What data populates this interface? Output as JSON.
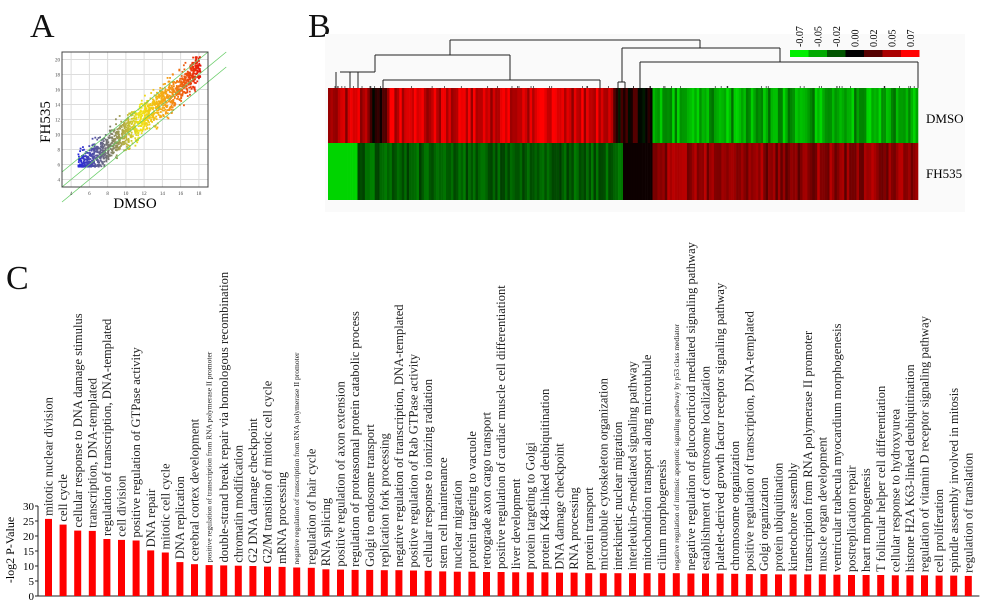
{
  "panels": {
    "a": "A",
    "b": "B",
    "c": "C"
  },
  "scatter": {
    "xlabel": "DMSO",
    "ylabel": "FH535",
    "x_ticks": [
      "4",
      "6",
      "8",
      "10",
      "12",
      "14",
      "16",
      "18"
    ],
    "y_ticks": [
      "4",
      "6",
      "8",
      "10",
      "12",
      "14",
      "16",
      "18",
      "20"
    ],
    "xlim": [
      3,
      19
    ],
    "ylim": [
      3,
      21
    ]
  },
  "heatmap": {
    "rows": [
      "DMSO",
      "FH535"
    ],
    "colorbar_ticks": [
      "-0.07",
      "-0.05",
      "-0.02",
      "0.00",
      "0.02",
      "0.05",
      "0.07"
    ],
    "colorbar_colors": [
      "#00ee00",
      "#00aa00",
      "#005500",
      "#000000",
      "#550000",
      "#aa0000",
      "#ff0000"
    ]
  },
  "chart_data": {
    "type": "bar",
    "title": "",
    "xlabel": "",
    "ylabel": "-log2 P-Value",
    "ylim": [
      0,
      30
    ],
    "y_ticks": [
      "0",
      "5",
      "10",
      "15",
      "20",
      "25",
      "30"
    ],
    "bar_color": "#ff0000",
    "categories": [
      "mitotic nuclear division",
      "cell cycle",
      "cellular response to DNA damage stimulus",
      "transcription, DNA-templated",
      "regulation of transcription, DNA-templated",
      "cell division",
      "positive regulation of GTPase activity",
      "DNA repair",
      "mitotic cell cycle",
      "DNA replication",
      "cerebral cortex development",
      "positive regulation of transcription from RNA polymerase II promoter",
      "double-strand break repair via homologous recombination",
      "chromatin modification",
      "G2 DNA damage checkpoint",
      "G2/M transition of mitotic cell cycle",
      "mRNA processing",
      "negative regulation of transcription from RNA polymerase II promoter",
      "regulation of hair cycle",
      "RNA splicing",
      "positive regulation of axon extension",
      "regulation of proteasomal protein catabolic process",
      "Golgi to endosome transport",
      "replication fork processing",
      "negative regulation of transcription, DNA-templated",
      "positive regulation of Rab GTPase activity",
      "cellular response to ionizing radiation",
      "stem cell maintenance",
      "nuclear migration",
      "protein targeting to vacuole",
      "retrograde axon cargo transport",
      "positive regulation of cardiac muscle cell differentiationt",
      "liver development",
      "protein targeting to Golgi",
      "protein K48-linked deubiquitination",
      "DNA damage checkpoint",
      "RNA processing",
      "protein transport",
      "microtubule cytoskeleton organization",
      "interkinetic nuclear migration",
      "interleukin-6-mediated signaling pathway",
      "mitochondrion transport along microtubule",
      "cilium morphogenesis",
      "negative regulation of intrinsic apoptotic signaling pathway by p53 class mediator",
      "negative regulation of glucocorticoid mediated signaling pathway",
      "establishment of centrosome localization",
      "platelet-derived growth factor receptor signaling pathway",
      "chromosome organization",
      "positive regulation of transcription, DNA-templated",
      "Golgi organization",
      "protein ubiquitination",
      "kinetochore assembly",
      "transcription from RNA polymerase II promoter",
      "muscle organ development",
      "ventricular trabecula myocardium morphogenesis",
      "postreplication repair",
      "heart morphogenesis",
      "T follicular helper cell differentiation",
      "cellular response to hydroxyurea",
      "histone H2A K63-linked deubiquitination",
      "regulation of vitamin D receptor signaling pathway",
      "cell proliferation",
      "spindle assembly involved in mitosis",
      "regulation of translation"
    ],
    "values": [
      25.7,
      23.8,
      21.8,
      21.7,
      19.0,
      18.7,
      18.5,
      15.2,
      14.5,
      11.3,
      10.6,
      10.3,
      10.2,
      10.1,
      10.0,
      9.8,
      9.7,
      9.5,
      9.4,
      8.9,
      8.8,
      8.7,
      8.7,
      8.6,
      8.6,
      8.5,
      8.4,
      8.2,
      8.1,
      8.1,
      8.0,
      8.0,
      7.9,
      7.9,
      7.9,
      7.8,
      7.8,
      7.6,
      7.6,
      7.6,
      7.6,
      7.6,
      7.6,
      7.6,
      7.5,
      7.5,
      7.5,
      7.4,
      7.3,
      7.3,
      7.2,
      7.2,
      7.2,
      7.2,
      7.1,
      7.0,
      7.0,
      7.0,
      6.9,
      6.9,
      6.9,
      6.8,
      6.8,
      6.7
    ]
  }
}
